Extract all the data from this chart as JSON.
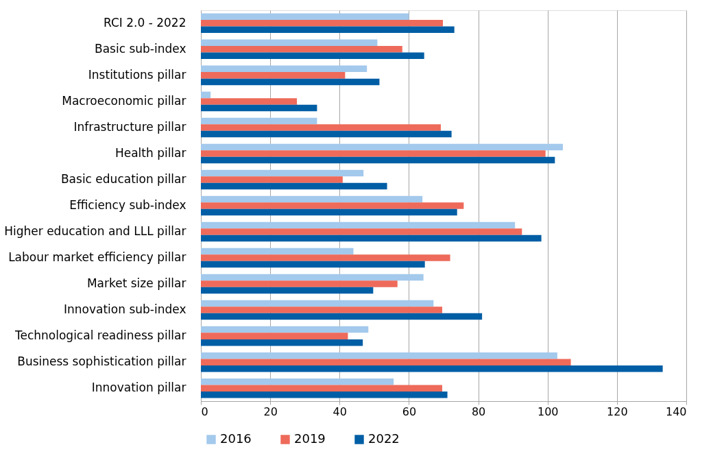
{
  "chart_data": {
    "type": "bar",
    "orientation": "horizontal",
    "categories": [
      "RCI 2.0 - 2022",
      "Basic sub-index",
      "Institutions pillar",
      "Macroeconomic pillar",
      "Infrastructure pillar",
      "Health pillar",
      "Basic education pillar",
      "Efficiency sub-index",
      "Higher education and LLL pillar",
      "Labour market efficiency pillar",
      "Market size pillar",
      "Innovation sub-index",
      "Technological readiness pillar",
      "Business sophistication pillar",
      "Innovation pillar"
    ],
    "series": [
      {
        "name": "2016",
        "color": "#a3c9ec",
        "values": [
          60,
          50.9,
          47.9,
          2.8,
          33.5,
          104.4,
          46.9,
          63.9,
          90.6,
          44.0,
          64.2,
          67.1,
          48.3,
          102.8,
          55.6
        ]
      },
      {
        "name": "2019",
        "color": "#ee6a5a",
        "values": [
          69.8,
          58.1,
          41.6,
          27.7,
          69.2,
          99.4,
          40.9,
          75.8,
          92.6,
          71.9,
          56.7,
          69.6,
          42.4,
          106.7,
          69.6
        ]
      },
      {
        "name": "2022",
        "color": "#005ea5",
        "values": [
          73.1,
          64.4,
          51.5,
          33.5,
          72.3,
          102.1,
          53.7,
          73.9,
          98.2,
          64.6,
          49.7,
          81.1,
          46.7,
          133.2,
          71.1
        ]
      }
    ],
    "xlim": [
      0,
      140
    ],
    "xticks": [
      0,
      20,
      40,
      60,
      80,
      100,
      120,
      140
    ],
    "grid": "x",
    "legend": "bottom"
  }
}
